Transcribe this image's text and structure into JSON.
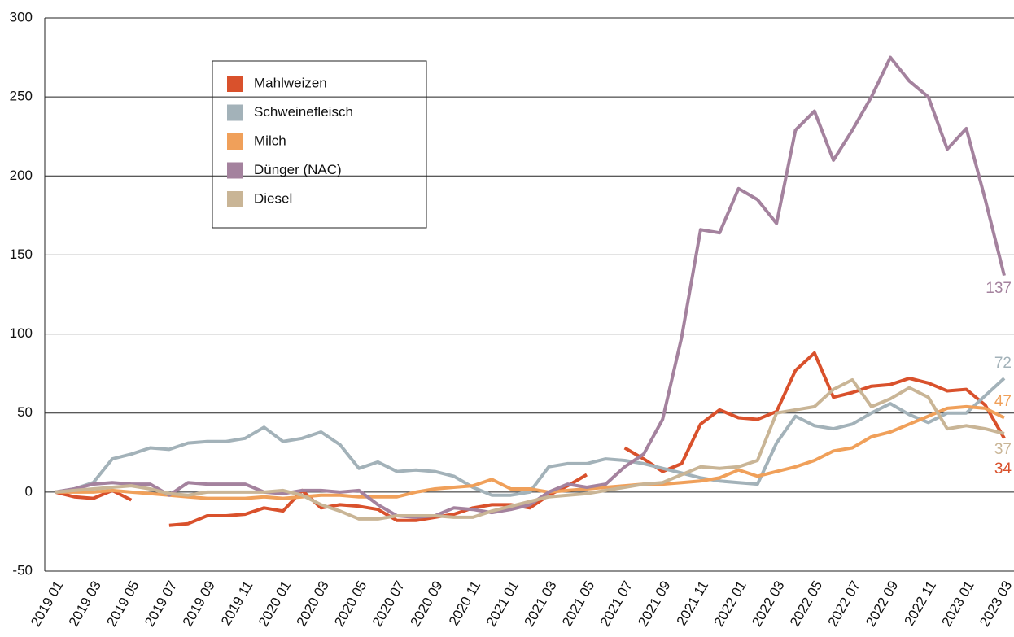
{
  "chart_data": {
    "type": "line",
    "categories": [
      "2019 01",
      null,
      "2019 03",
      null,
      "2019 05",
      null,
      "2019 07",
      null,
      "2019 09",
      null,
      "2019 11",
      null,
      "2020 01",
      null,
      "2020 03",
      null,
      "2020 05",
      null,
      "2020 07",
      null,
      "2020 09",
      null,
      "2020 11",
      null,
      "2021 01",
      null,
      "2021 03",
      null,
      "2021 05",
      null,
      "2021 07",
      null,
      "2021 09",
      null,
      "2021 11",
      null,
      "2022 01",
      null,
      "2022 03",
      null,
      "2022 05",
      null,
      "2022 07",
      null,
      "2022 09",
      null,
      "2022 11",
      null,
      "2023 01",
      null,
      "2023 03"
    ],
    "series": [
      {
        "name": "Mahlweizen",
        "color": "#d9512c",
        "values": [
          0,
          -3,
          -4,
          1,
          -5,
          null,
          -21,
          -20,
          -15,
          -15,
          -14,
          -10,
          -12,
          1,
          -10,
          -8,
          -9,
          -11,
          -18,
          -18,
          -16,
          -14,
          -10,
          -8,
          -8,
          -10,
          -2,
          4,
          11,
          null,
          28,
          21,
          13,
          18,
          43,
          52,
          47,
          46,
          51,
          77,
          88,
          60,
          63,
          67,
          68,
          72,
          69,
          64,
          65,
          55,
          34
        ]
      },
      {
        "name": "Schweinefleisch",
        "color": "#a3b2b9",
        "values": [
          0,
          2,
          6,
          21,
          24,
          28,
          27,
          31,
          32,
          32,
          34,
          41,
          32,
          34,
          38,
          30,
          15,
          19,
          13,
          14,
          13,
          10,
          3,
          -2,
          -2,
          0,
          16,
          18,
          18,
          21,
          20,
          18,
          15,
          12,
          9,
          7,
          6,
          5,
          31,
          48,
          42,
          40,
          43,
          50,
          56,
          49,
          44,
          50,
          50,
          61,
          72
        ]
      },
      {
        "name": "Milch",
        "color": "#f0a05a",
        "values": [
          0,
          0,
          0,
          1,
          0,
          -1,
          -2,
          -3,
          -4,
          -4,
          -4,
          -3,
          -4,
          -3,
          -2,
          -2,
          -3,
          -3,
          -3,
          0,
          2,
          3,
          4,
          8,
          2,
          2,
          0,
          1,
          2,
          3,
          4,
          5,
          5,
          6,
          7,
          9,
          14,
          10,
          13,
          16,
          20,
          26,
          28,
          35,
          38,
          43,
          48,
          53,
          54,
          53,
          47
        ]
      },
      {
        "name": "Dünger (NAC)",
        "color": "#a4829e",
        "values": [
          0,
          2,
          5,
          6,
          5,
          5,
          -2,
          6,
          5,
          5,
          5,
          0,
          -1,
          1,
          1,
          0,
          1,
          -8,
          -15,
          -16,
          -15,
          -10,
          -11,
          -13,
          -11,
          -8,
          0,
          5,
          3,
          5,
          16,
          24,
          46,
          98,
          166,
          164,
          192,
          185,
          170,
          229,
          241,
          210,
          229,
          250,
          275,
          260,
          250,
          217,
          230,
          185,
          137
        ]
      },
      {
        "name": "Diesel",
        "color": "#c9b596",
        "values": [
          0,
          1,
          2,
          3,
          4,
          2,
          -1,
          -2,
          0,
          0,
          0,
          0,
          1,
          -2,
          -8,
          -12,
          -17,
          -17,
          -15,
          -15,
          -15,
          -16,
          -16,
          -12,
          -9,
          -6,
          -3,
          -2,
          -1,
          1,
          3,
          5,
          6,
          11,
          16,
          15,
          16,
          20,
          50,
          52,
          54,
          65,
          71,
          54,
          59,
          66,
          60,
          40,
          42,
          40,
          37
        ]
      }
    ],
    "ylim": [
      -50,
      300
    ],
    "yticks": [
      -50,
      0,
      50,
      100,
      150,
      200,
      250,
      300
    ],
    "grid": true,
    "legend": "upper left"
  }
}
